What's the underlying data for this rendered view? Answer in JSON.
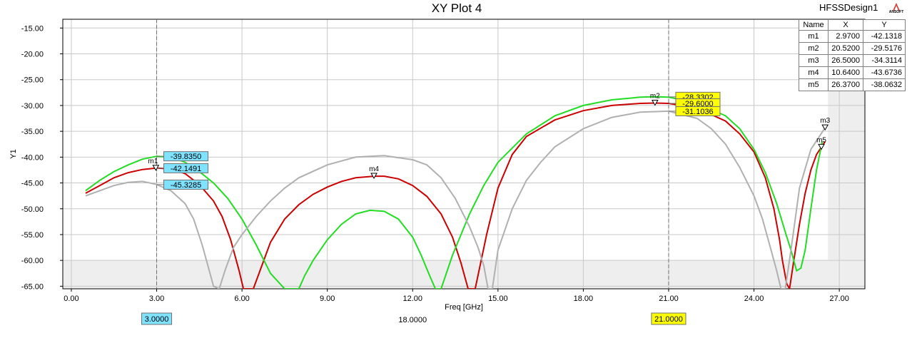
{
  "title": "XY Plot 4",
  "design_name": "HFSSDesign1",
  "logo_text": "ANSOFT",
  "marker_table": {
    "headers": [
      "Name",
      "X",
      "Y"
    ],
    "rows": [
      [
        "m1",
        "2.9700",
        "-42.1318"
      ],
      [
        "m2",
        "20.5200",
        "-29.5176"
      ],
      [
        "m3",
        "26.5000",
        "-34.3114"
      ],
      [
        "m4",
        "10.6400",
        "-43.6736"
      ],
      [
        "m5",
        "26.3700",
        "-38.0632"
      ]
    ]
  },
  "chart_data": {
    "type": "line",
    "xlabel": "Freq [GHz]",
    "ylabel": "Y1",
    "xlim": [
      -0.3,
      27.9
    ],
    "ylim": [
      -65.5,
      -13.3
    ],
    "x_ticks": [
      "0.00",
      "3.00",
      "6.00",
      "9.00",
      "12.00",
      "15.00",
      "18.00",
      "21.00",
      "24.00",
      "27.00"
    ],
    "y_ticks": [
      "-15.00",
      "-20.00",
      "-25.00",
      "-30.00",
      "-35.00",
      "-40.00",
      "-45.00",
      "-50.00",
      "-55.00",
      "-60.00",
      "-65.00"
    ],
    "grid": true,
    "series": [
      {
        "color": "#cc0000",
        "x": [
          0.5,
          1.0,
          1.5,
          2.0,
          2.5,
          3.0,
          3.5,
          4.0,
          4.5,
          5.0,
          5.3,
          5.6,
          5.9,
          6.05,
          6.4,
          6.7,
          7.0,
          7.5,
          8.0,
          8.5,
          9.0,
          9.5,
          10.0,
          10.64,
          11.0,
          11.5,
          12.0,
          12.5,
          13.0,
          13.4,
          13.7,
          13.95,
          14.2,
          14.6,
          15.0,
          15.5,
          16.0,
          17.0,
          18.0,
          19.0,
          20.0,
          20.52,
          21.0,
          22.0,
          23.0,
          23.5,
          24.0,
          24.4,
          24.7,
          24.9,
          25.0,
          25.15,
          25.25,
          25.4,
          25.6,
          25.8,
          26.0,
          26.2,
          26.37,
          26.5
        ],
        "y": [
          -47.0,
          -45.5,
          -44.0,
          -43.0,
          -42.4,
          -42.1,
          -42.3,
          -43.2,
          -45.3,
          -48.5,
          -51.5,
          -56.0,
          -62.0,
          -65.5,
          -65.5,
          -61.0,
          -56.5,
          -52.0,
          -49.2,
          -47.2,
          -45.8,
          -44.7,
          -44.0,
          -43.7,
          -43.7,
          -44.2,
          -45.5,
          -47.6,
          -51.0,
          -55.5,
          -60.5,
          -65.5,
          -65.5,
          -55.0,
          -46.0,
          -39.5,
          -36.0,
          -32.8,
          -31.0,
          -30.0,
          -29.6,
          -29.52,
          -29.6,
          -30.5,
          -33.0,
          -35.5,
          -39.0,
          -44.0,
          -50.0,
          -56.0,
          -60.0,
          -64.5,
          -65.5,
          -60.0,
          -53.0,
          -47.0,
          -42.5,
          -39.5,
          -38.06,
          -37.0
        ]
      },
      {
        "color": "#22dd22",
        "x": [
          0.5,
          1.0,
          1.5,
          2.0,
          2.5,
          3.0,
          3.5,
          4.0,
          4.5,
          5.0,
          5.5,
          6.0,
          6.5,
          7.0,
          7.5,
          7.6,
          8.0,
          8.2,
          8.5,
          9.0,
          9.5,
          10.0,
          10.5,
          11.0,
          11.5,
          12.0,
          12.3,
          12.6,
          12.8,
          13.0,
          13.4,
          14.0,
          14.5,
          15.0,
          16.0,
          17.0,
          18.0,
          19.0,
          20.0,
          20.52,
          21.0,
          22.0,
          23.0,
          23.5,
          24.0,
          24.4,
          24.8,
          25.1,
          25.3,
          25.5,
          25.65,
          25.8,
          26.0,
          26.2,
          26.4
        ],
        "y": [
          -46.5,
          -44.5,
          -42.8,
          -41.5,
          -40.4,
          -39.84,
          -40.0,
          -41.0,
          -42.8,
          -45.0,
          -48.0,
          -52.0,
          -57.0,
          -62.5,
          -65.5,
          -65.5,
          -65.5,
          -63.0,
          -60.0,
          -56.0,
          -53.0,
          -51.0,
          -50.3,
          -50.5,
          -52.0,
          -55.5,
          -59.0,
          -63.0,
          -65.5,
          -65.5,
          -59.0,
          -51.0,
          -45.5,
          -41.0,
          -35.5,
          -32.0,
          -30.0,
          -28.9,
          -28.4,
          -28.3,
          -28.4,
          -29.5,
          -32.0,
          -34.5,
          -38.5,
          -43.0,
          -49.0,
          -54.5,
          -58.0,
          -62.0,
          -61.5,
          -58.0,
          -50.0,
          -42.5,
          -37.0
        ]
      },
      {
        "color": "#b0b0b0",
        "x": [
          0.5,
          1.0,
          1.5,
          2.0,
          2.5,
          3.0,
          3.5,
          4.0,
          4.3,
          4.6,
          4.8,
          5.0,
          5.2,
          5.4,
          5.7,
          6.0,
          6.5,
          7.0,
          7.5,
          8.0,
          9.0,
          10.0,
          11.0,
          12.0,
          12.5,
          13.0,
          13.5,
          14.0,
          14.3,
          14.5,
          14.65,
          14.8,
          15.0,
          15.5,
          16.0,
          16.5,
          17.0,
          18.0,
          19.0,
          20.0,
          21.0,
          22.0,
          22.5,
          23.0,
          23.5,
          24.0,
          24.3,
          24.6,
          24.8,
          24.95,
          25.1,
          25.3,
          25.6,
          26.0,
          26.5
        ],
        "y": [
          -47.5,
          -46.5,
          -45.5,
          -44.9,
          -44.7,
          -45.3,
          -46.5,
          -49.0,
          -52.0,
          -57.0,
          -61.0,
          -65.0,
          -65.5,
          -62.0,
          -57.5,
          -55.0,
          -51.5,
          -48.5,
          -46.0,
          -44.0,
          -41.5,
          -40.0,
          -39.7,
          -40.5,
          -41.5,
          -44.0,
          -48.0,
          -53.5,
          -57.5,
          -61.0,
          -65.5,
          -65.5,
          -58.0,
          -50.0,
          -44.5,
          -41.0,
          -38.0,
          -34.5,
          -32.3,
          -31.3,
          -31.1,
          -32.5,
          -34.5,
          -37.5,
          -42.0,
          -47.5,
          -52.0,
          -58.0,
          -62.0,
          -65.5,
          -65.5,
          -58.0,
          -46.0,
          -38.5,
          -34.3
        ]
      }
    ],
    "markers": [
      {
        "name": "m1",
        "x": 2.97,
        "y": -42.1318
      },
      {
        "name": "m2",
        "x": 20.52,
        "y": -29.5176
      },
      {
        "name": "m3",
        "x": 26.5,
        "y": -34.3114
      },
      {
        "name": "m4",
        "x": 10.64,
        "y": -43.6736
      },
      {
        "name": "m5",
        "x": 26.37,
        "y": -38.0632
      }
    ],
    "vertical_cursors": [
      {
        "x": 3.0,
        "label": "3.0000",
        "color": "#7fe3ff"
      },
      {
        "x": 21.0,
        "label": "21.0000",
        "color": "#ffff00"
      }
    ],
    "delta_label": "18.0000",
    "cursor_readouts": [
      {
        "x": 3.0,
        "y": -39.835,
        "label": "-39.8350",
        "color": "#7fe3ff"
      },
      {
        "x": 3.0,
        "y": -42.1491,
        "label": "-42.1491",
        "color": "#7fe3ff"
      },
      {
        "x": 3.0,
        "y": -45.3285,
        "label": "-45.3285",
        "color": "#7fe3ff"
      },
      {
        "x": 21.0,
        "y": -28.3302,
        "label": "-28.3302",
        "color": "#ffff00"
      },
      {
        "x": 21.0,
        "y": -29.6,
        "label": "-29.6000",
        "color": "#ffff00"
      },
      {
        "x": 21.0,
        "y": -31.1036,
        "label": "-31.1036",
        "color": "#ffff00"
      }
    ],
    "shaded_regions": [
      {
        "x_from": 26.6,
        "x_to": 27.9,
        "y_from": -65.5,
        "y_to": -13.3
      },
      {
        "x_from": -0.3,
        "x_to": 27.9,
        "y_from": -65.5,
        "y_to": -60.0
      }
    ]
  }
}
